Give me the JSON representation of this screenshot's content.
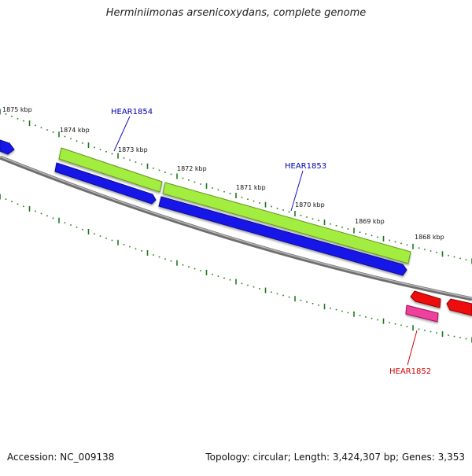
{
  "title": "Herminiimonas arsenicoxydans, complete genome",
  "accession": "Accession: NC_009138",
  "summary": "Topology: circular; Length: 3,424,307 bp; Genes: 3,353",
  "colors": {
    "backbone": "#7b7b7b",
    "tick": "#1f7a1f",
    "gene_fwd": "#1414e6",
    "cds_fwd": "#9ee83a",
    "gene_rev": "#ee1010",
    "cds_rev": "#ee3aa0",
    "label_fwd": "#0000b0",
    "label_rev": "#d40000"
  },
  "scale_labels": [
    "1875 kbp",
    "1874 kbp",
    "1873 kbp",
    "1872 kbp",
    "1871 kbp",
    "1870 kbp",
    "1869 kbp",
    "1868 kbp"
  ],
  "gene_labels": [
    {
      "text": "HEAR1854",
      "strand": "forward"
    },
    {
      "text": "HEAR1853",
      "strand": "forward"
    },
    {
      "text": "HEAR1852",
      "strand": "reverse"
    }
  ]
}
